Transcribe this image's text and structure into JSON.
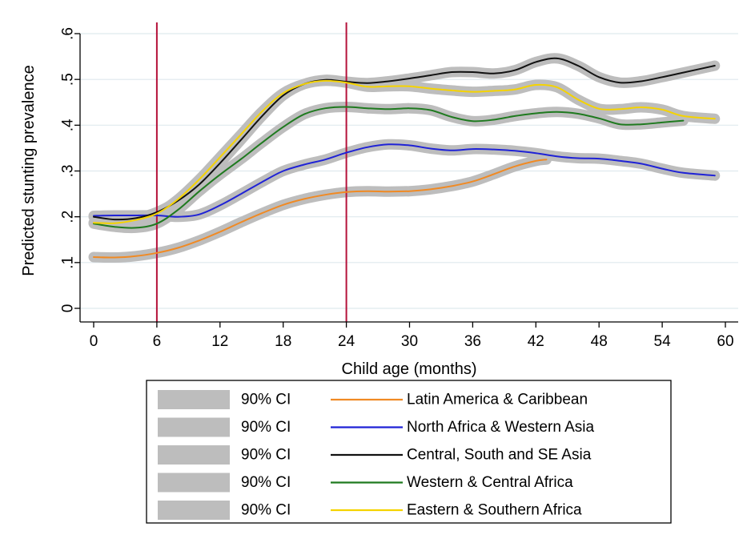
{
  "chart_data": {
    "type": "line",
    "xlabel": "Child age (months)",
    "ylabel": "Predicted stunting prevalence",
    "xlim": [
      0,
      60
    ],
    "ylim": [
      0,
      0.6
    ],
    "x_ticks": [
      0,
      6,
      12,
      18,
      24,
      30,
      36,
      42,
      48,
      54,
      60
    ],
    "x_tick_labels": [
      "0",
      "6",
      "12",
      "18",
      "24",
      "30",
      "36",
      "42",
      "48",
      "54",
      "60"
    ],
    "y_ticks": [
      0,
      0.1,
      0.2,
      0.3,
      0.4,
      0.5,
      0.6
    ],
    "y_tick_labels": [
      "0",
      ".1",
      ".2",
      ".3",
      ".4",
      ".5",
      ".6"
    ],
    "grid": true,
    "vertical_reference_lines": [
      6,
      24
    ],
    "reference_line_color": "#b5123a",
    "ci_color": "#bdbdbd",
    "legend_position": "bottom",
    "ci_label": "90% CI",
    "series": [
      {
        "name": "Latin America & Caribbean",
        "color": "#f08a24",
        "x": [
          0,
          2,
          4,
          6,
          8,
          10,
          12,
          14,
          16,
          18,
          20,
          22,
          24,
          26,
          28,
          30,
          32,
          34,
          36,
          38,
          40,
          42,
          43
        ],
        "y": [
          0.112,
          0.111,
          0.114,
          0.121,
          0.132,
          0.148,
          0.167,
          0.188,
          0.208,
          0.226,
          0.239,
          0.248,
          0.254,
          0.256,
          0.255,
          0.256,
          0.26,
          0.267,
          0.277,
          0.293,
          0.31,
          0.322,
          0.325
        ]
      },
      {
        "name": "North Africa & Western Asia",
        "color": "#1f22d6",
        "x": [
          0,
          2,
          4,
          6,
          8,
          10,
          12,
          14,
          16,
          18,
          20,
          22,
          24,
          26,
          28,
          30,
          32,
          34,
          36,
          38,
          40,
          42,
          44,
          46,
          48,
          50,
          52,
          54,
          56,
          59
        ],
        "y": [
          0.202,
          0.203,
          0.203,
          0.203,
          0.2,
          0.205,
          0.225,
          0.25,
          0.276,
          0.3,
          0.314,
          0.325,
          0.34,
          0.352,
          0.358,
          0.356,
          0.349,
          0.345,
          0.348,
          0.347,
          0.344,
          0.339,
          0.332,
          0.328,
          0.327,
          0.322,
          0.316,
          0.305,
          0.296,
          0.29
        ]
      },
      {
        "name": "Central, South and SE Asia",
        "color": "#111111",
        "x": [
          0,
          2,
          4,
          6,
          8,
          10,
          12,
          14,
          16,
          18,
          20,
          22,
          24,
          26,
          28,
          30,
          32,
          34,
          36,
          38,
          40,
          42,
          44,
          46,
          48,
          50,
          52,
          54,
          56,
          59
        ],
        "y": [
          0.2,
          0.194,
          0.197,
          0.21,
          0.235,
          0.27,
          0.317,
          0.368,
          0.42,
          0.465,
          0.49,
          0.499,
          0.495,
          0.492,
          0.496,
          0.502,
          0.509,
          0.516,
          0.516,
          0.513,
          0.52,
          0.538,
          0.546,
          0.53,
          0.505,
          0.493,
          0.496,
          0.505,
          0.515,
          0.53
        ]
      },
      {
        "name": "Western & Central Africa",
        "color": "#1f7a1f",
        "x": [
          0,
          2,
          4,
          6,
          8,
          10,
          12,
          14,
          16,
          18,
          20,
          22,
          24,
          26,
          28,
          30,
          32,
          34,
          36,
          38,
          40,
          42,
          44,
          46,
          48,
          50,
          52,
          54,
          56
        ],
        "y": [
          0.185,
          0.178,
          0.176,
          0.185,
          0.215,
          0.255,
          0.292,
          0.326,
          0.362,
          0.396,
          0.424,
          0.437,
          0.44,
          0.437,
          0.435,
          0.437,
          0.433,
          0.418,
          0.409,
          0.412,
          0.42,
          0.426,
          0.429,
          0.425,
          0.415,
          0.402,
          0.402,
          0.406,
          0.41
        ]
      },
      {
        "name": "Eastern & Southern Africa",
        "color": "#f5d300",
        "x": [
          0,
          2,
          4,
          6,
          8,
          10,
          12,
          14,
          16,
          18,
          20,
          22,
          24,
          26,
          28,
          30,
          32,
          34,
          36,
          38,
          40,
          42,
          44,
          46,
          48,
          50,
          52,
          54,
          56,
          59
        ],
        "y": [
          0.187,
          0.186,
          0.193,
          0.207,
          0.238,
          0.281,
          0.33,
          0.38,
          0.43,
          0.47,
          0.49,
          0.497,
          0.493,
          0.484,
          0.485,
          0.485,
          0.48,
          0.476,
          0.473,
          0.475,
          0.478,
          0.488,
          0.483,
          0.456,
          0.436,
          0.435,
          0.439,
          0.434,
          0.42,
          0.414
        ]
      }
    ]
  }
}
